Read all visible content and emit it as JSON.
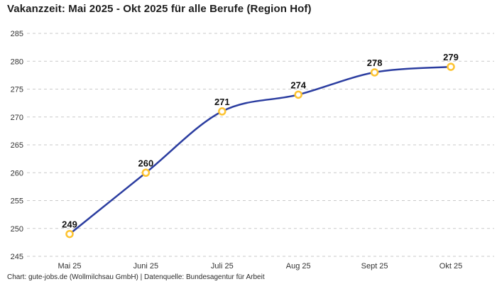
{
  "title": "Vakanzzeit: Mai 2025 - Okt 2025 für alle Berufe (Region Hof)",
  "footer": "Chart: gute-jobs.de (Wollmilchsau GmbH) | Datenquelle: Bundesagentur für Arbeit",
  "colors": {
    "line": "#2b3da0",
    "marker_stroke": "#fdc330",
    "marker_fill": "#ffffff",
    "grid": "#c9c9c9",
    "title_text": "#1d1d1d",
    "axis_text": "#333333",
    "value_label_text": "#111111",
    "background": "#ffffff"
  },
  "chart_data": {
    "type": "line",
    "categories": [
      "Mai 25",
      "Juni 25",
      "Juli 25",
      "Aug 25",
      "Sept 25",
      "Okt 25"
    ],
    "values": [
      249,
      260,
      271,
      274,
      278,
      279
    ],
    "series": [
      {
        "name": "Vakanzzeit (Region Hof)",
        "values": [
          249,
          260,
          271,
          274,
          278,
          279
        ]
      }
    ],
    "title": "Vakanzzeit: Mai 2025 - Okt 2025 für alle Berufe (Region Hof)",
    "xlabel": "",
    "ylabel": "",
    "ylim": [
      245,
      285
    ],
    "yticks": [
      245,
      250,
      255,
      260,
      265,
      270,
      275,
      280,
      285
    ],
    "grid": "horizontal-dashed",
    "legend": "none",
    "smooth": true,
    "point_labels": true
  }
}
